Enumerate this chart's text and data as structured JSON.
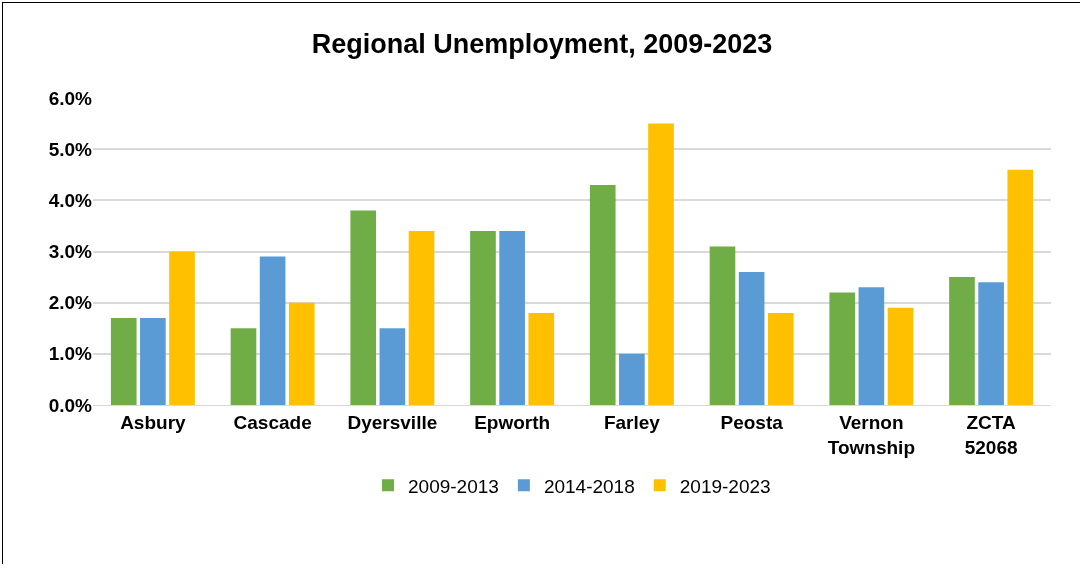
{
  "chart_data": {
    "type": "bar",
    "title": "Regional Unemployment, 2009-2023",
    "categories": [
      "Asbury",
      "Cascade",
      "Dyersville",
      "Epworth",
      "Farley",
      "Peosta",
      "Vernon Township",
      "ZCTA 52068"
    ],
    "series": [
      {
        "name": "2009-2013",
        "color": "#70ad47",
        "values": [
          1.7,
          1.5,
          3.8,
          3.4,
          4.3,
          3.1,
          2.2,
          2.5
        ]
      },
      {
        "name": "2014-2018",
        "color": "#5b9bd5",
        "values": [
          1.7,
          2.9,
          1.5,
          3.4,
          1.0,
          2.6,
          2.3,
          2.4
        ]
      },
      {
        "name": "2019-2023",
        "color": "#ffc000",
        "values": [
          3.0,
          2.0,
          3.4,
          1.8,
          5.5,
          1.8,
          1.9,
          4.6
        ]
      }
    ],
    "ylim": [
      0,
      6
    ],
    "yticks": [
      {
        "value": 0,
        "label": "0.0%"
      },
      {
        "value": 1,
        "label": "1.0%"
      },
      {
        "value": 2,
        "label": "2.0%"
      },
      {
        "value": 3,
        "label": "3.0%"
      },
      {
        "value": 4,
        "label": "4.0%"
      },
      {
        "value": 5,
        "label": "5.0%"
      },
      {
        "value": 6,
        "label": "6.0%"
      }
    ],
    "grid": "y",
    "legend": "bottom"
  }
}
